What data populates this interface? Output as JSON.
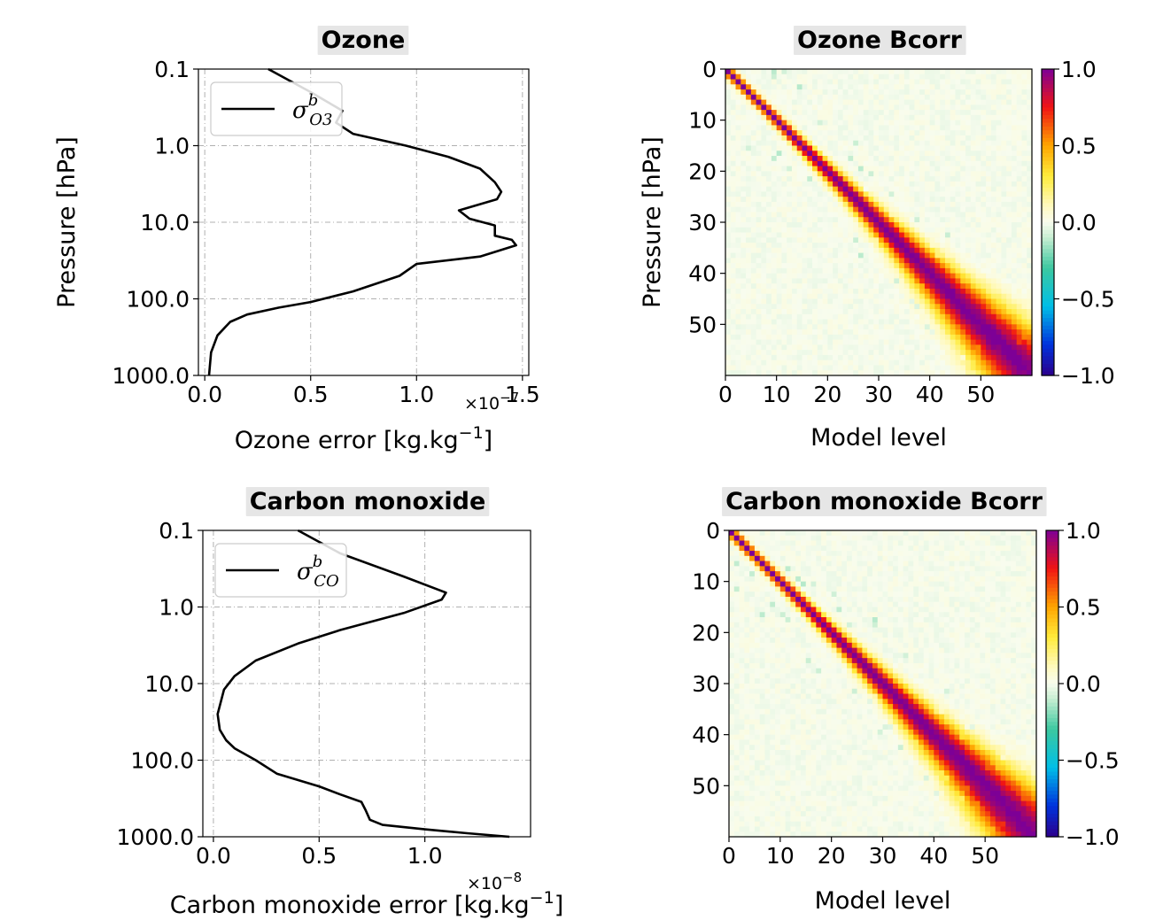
{
  "chart_data": [
    {
      "type": "line",
      "title": "Ozone",
      "xlabel": "Ozone error [kg.kg",
      "xlabel_sup": "−1",
      "xlabel_end": "]",
      "offset_base": "×10",
      "offset_exp": "−7",
      "ylabel": "Pressure [hPa]",
      "xlim": [
        -0.03,
        1.53
      ],
      "ylim_log": [
        1000.0,
        0.1
      ],
      "y_scale": "log",
      "x_ticks": [
        "0.0",
        "0.5",
        "1.0",
        "1.5"
      ],
      "x_tick_values": [
        0.0,
        0.5,
        1.0,
        1.5
      ],
      "y_ticks": [
        "0.1",
        "1.0",
        "10.0",
        "100.0",
        "1000.0"
      ],
      "y_tick_values": [
        0.1,
        1.0,
        10.0,
        100.0,
        1000.0
      ],
      "grid": true,
      "legend": {
        "position": "top-left",
        "symbol": "σ",
        "sup": "b",
        "sub": "O3"
      },
      "series": [
        {
          "x": [
            0.3,
            0.5,
            0.65,
            0.62,
            0.7,
            0.95,
            1.15,
            1.3,
            1.37,
            1.4,
            1.38,
            1.2,
            1.25,
            1.37,
            1.37,
            1.45,
            1.47,
            1.3,
            1.0,
            0.92,
            0.7,
            0.5,
            0.35,
            0.2,
            0.12,
            0.06,
            0.03,
            0.02
          ],
          "y": [
            0.1,
            0.2,
            0.35,
            0.5,
            0.7,
            1.0,
            1.4,
            2.0,
            3.0,
            4.0,
            5.0,
            7.0,
            9.0,
            11.0,
            15.0,
            17.0,
            20.0,
            28.0,
            35.0,
            50.0,
            80.0,
            110.0,
            130.0,
            160.0,
            200.0,
            300.0,
            500.0,
            1000.0
          ]
        }
      ]
    },
    {
      "type": "heatmap",
      "title": "Ozone Bcorr",
      "xlabel": "Model level",
      "ylabel": "Pressure [hPa]",
      "xlim": [
        0,
        60
      ],
      "ylim": [
        60,
        0
      ],
      "x_ticks": [
        "0",
        "10",
        "20",
        "30",
        "40",
        "50"
      ],
      "x_tick_values": [
        0,
        10,
        20,
        30,
        40,
        50
      ],
      "y_ticks": [
        "0",
        "10",
        "20",
        "30",
        "40",
        "50"
      ],
      "y_tick_values": [
        0,
        10,
        20,
        30,
        40,
        50
      ],
      "colorbar": {
        "colormap": "spectral",
        "range": [
          -1.0,
          1.0
        ],
        "ticks": [
          "1.0",
          "0.5",
          "0.0",
          "−0.5",
          "−1.0"
        ],
        "tick_values": [
          1.0,
          0.5,
          0.0,
          -0.5,
          -1.0
        ]
      },
      "matrix": {
        "levels": 60,
        "diagonal": 1.0,
        "structure": "banded correlation, band widening with model level"
      }
    },
    {
      "type": "line",
      "title": "Carbon monoxide",
      "xlabel": "Carbon monoxide error [kg.kg",
      "xlabel_sup": "−1",
      "xlabel_end": "]",
      "offset_base": "×10",
      "offset_exp": "−8",
      "ylabel": "",
      "xlim": [
        -0.05,
        1.5
      ],
      "ylim_log": [
        1000.0,
        0.1
      ],
      "y_scale": "log",
      "x_ticks": [
        "0.0",
        "0.5",
        "1.0"
      ],
      "x_tick_values": [
        0.0,
        0.5,
        1.0
      ],
      "y_ticks": [
        "0.1",
        "1.0",
        "10.0",
        "100.0",
        "1000.0"
      ],
      "y_tick_values": [
        0.1,
        1.0,
        10.0,
        100.0,
        1000.0
      ],
      "grid": true,
      "legend": {
        "position": "top-left",
        "symbol": "σ",
        "sup": "b",
        "sub": "CO"
      },
      "series": [
        {
          "x": [
            0.4,
            0.6,
            0.9,
            1.1,
            1.08,
            0.9,
            0.6,
            0.4,
            0.2,
            0.1,
            0.05,
            0.02,
            0.03,
            0.06,
            0.1,
            0.2,
            0.3,
            0.5,
            0.6,
            0.7,
            0.72,
            0.74,
            0.8,
            1.0,
            1.2,
            1.4
          ],
          "y": [
            0.1,
            0.2,
            0.4,
            0.65,
            0.8,
            1.2,
            2.0,
            3.0,
            5.0,
            8.0,
            12.0,
            25.0,
            40.0,
            55.0,
            70.0,
            100.0,
            150.0,
            220.0,
            280.0,
            350.0,
            450.0,
            600.0,
            700.0,
            800.0,
            900.0,
            1000.0
          ]
        }
      ]
    },
    {
      "type": "heatmap",
      "title": "Carbon monoxide Bcorr",
      "xlabel": "Model level",
      "ylabel": "",
      "xlim": [
        0,
        60
      ],
      "ylim": [
        60,
        0
      ],
      "x_ticks": [
        "0",
        "10",
        "20",
        "30",
        "40",
        "50"
      ],
      "x_tick_values": [
        0,
        10,
        20,
        30,
        40,
        50
      ],
      "y_ticks": [
        "0",
        "10",
        "20",
        "30",
        "40",
        "50"
      ],
      "y_tick_values": [
        0,
        10,
        20,
        30,
        40,
        50
      ],
      "colorbar": {
        "colormap": "spectral",
        "range": [
          -1.0,
          1.0
        ],
        "ticks": [
          "1.0",
          "0.5",
          "0.0",
          "−0.5",
          "−1.0"
        ],
        "tick_values": [
          1.0,
          0.5,
          0.0,
          -0.5,
          -1.0
        ]
      },
      "matrix": {
        "levels": 60,
        "diagonal": 1.0,
        "structure": "banded correlation, band widening with model level"
      }
    }
  ]
}
